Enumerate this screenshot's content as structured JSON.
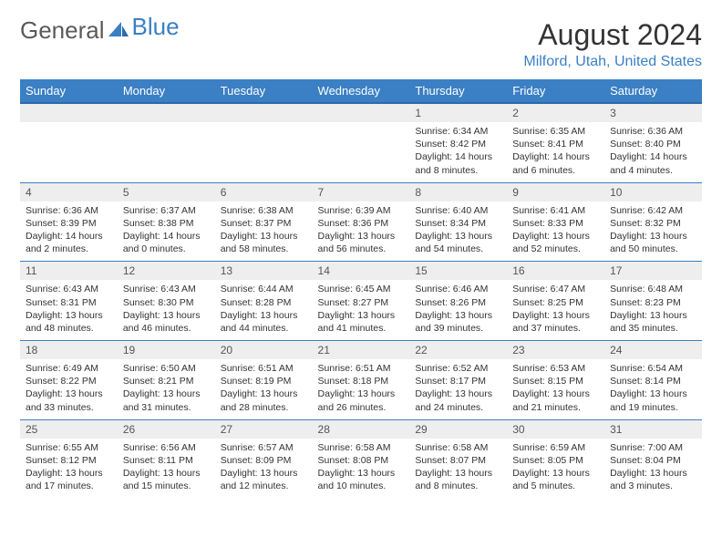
{
  "brand": {
    "part1": "General",
    "part2": "Blue"
  },
  "title": "August 2024",
  "location": "Milford, Utah, United States",
  "colors": {
    "accent": "#3b7fc4",
    "header_border": "#2f6aa8",
    "row_band": "#eeeeee",
    "text": "#333333",
    "bg": "#ffffff"
  },
  "day_headers": [
    "Sunday",
    "Monday",
    "Tuesday",
    "Wednesday",
    "Thursday",
    "Friday",
    "Saturday"
  ],
  "weeks": [
    [
      {
        "n": "",
        "sr": "",
        "ss": "",
        "dl": ""
      },
      {
        "n": "",
        "sr": "",
        "ss": "",
        "dl": ""
      },
      {
        "n": "",
        "sr": "",
        "ss": "",
        "dl": ""
      },
      {
        "n": "",
        "sr": "",
        "ss": "",
        "dl": ""
      },
      {
        "n": "1",
        "sr": "Sunrise: 6:34 AM",
        "ss": "Sunset: 8:42 PM",
        "dl": "Daylight: 14 hours and 8 minutes."
      },
      {
        "n": "2",
        "sr": "Sunrise: 6:35 AM",
        "ss": "Sunset: 8:41 PM",
        "dl": "Daylight: 14 hours and 6 minutes."
      },
      {
        "n": "3",
        "sr": "Sunrise: 6:36 AM",
        "ss": "Sunset: 8:40 PM",
        "dl": "Daylight: 14 hours and 4 minutes."
      }
    ],
    [
      {
        "n": "4",
        "sr": "Sunrise: 6:36 AM",
        "ss": "Sunset: 8:39 PM",
        "dl": "Daylight: 14 hours and 2 minutes."
      },
      {
        "n": "5",
        "sr": "Sunrise: 6:37 AM",
        "ss": "Sunset: 8:38 PM",
        "dl": "Daylight: 14 hours and 0 minutes."
      },
      {
        "n": "6",
        "sr": "Sunrise: 6:38 AM",
        "ss": "Sunset: 8:37 PM",
        "dl": "Daylight: 13 hours and 58 minutes."
      },
      {
        "n": "7",
        "sr": "Sunrise: 6:39 AM",
        "ss": "Sunset: 8:36 PM",
        "dl": "Daylight: 13 hours and 56 minutes."
      },
      {
        "n": "8",
        "sr": "Sunrise: 6:40 AM",
        "ss": "Sunset: 8:34 PM",
        "dl": "Daylight: 13 hours and 54 minutes."
      },
      {
        "n": "9",
        "sr": "Sunrise: 6:41 AM",
        "ss": "Sunset: 8:33 PM",
        "dl": "Daylight: 13 hours and 52 minutes."
      },
      {
        "n": "10",
        "sr": "Sunrise: 6:42 AM",
        "ss": "Sunset: 8:32 PM",
        "dl": "Daylight: 13 hours and 50 minutes."
      }
    ],
    [
      {
        "n": "11",
        "sr": "Sunrise: 6:43 AM",
        "ss": "Sunset: 8:31 PM",
        "dl": "Daylight: 13 hours and 48 minutes."
      },
      {
        "n": "12",
        "sr": "Sunrise: 6:43 AM",
        "ss": "Sunset: 8:30 PM",
        "dl": "Daylight: 13 hours and 46 minutes."
      },
      {
        "n": "13",
        "sr": "Sunrise: 6:44 AM",
        "ss": "Sunset: 8:28 PM",
        "dl": "Daylight: 13 hours and 44 minutes."
      },
      {
        "n": "14",
        "sr": "Sunrise: 6:45 AM",
        "ss": "Sunset: 8:27 PM",
        "dl": "Daylight: 13 hours and 41 minutes."
      },
      {
        "n": "15",
        "sr": "Sunrise: 6:46 AM",
        "ss": "Sunset: 8:26 PM",
        "dl": "Daylight: 13 hours and 39 minutes."
      },
      {
        "n": "16",
        "sr": "Sunrise: 6:47 AM",
        "ss": "Sunset: 8:25 PM",
        "dl": "Daylight: 13 hours and 37 minutes."
      },
      {
        "n": "17",
        "sr": "Sunrise: 6:48 AM",
        "ss": "Sunset: 8:23 PM",
        "dl": "Daylight: 13 hours and 35 minutes."
      }
    ],
    [
      {
        "n": "18",
        "sr": "Sunrise: 6:49 AM",
        "ss": "Sunset: 8:22 PM",
        "dl": "Daylight: 13 hours and 33 minutes."
      },
      {
        "n": "19",
        "sr": "Sunrise: 6:50 AM",
        "ss": "Sunset: 8:21 PM",
        "dl": "Daylight: 13 hours and 31 minutes."
      },
      {
        "n": "20",
        "sr": "Sunrise: 6:51 AM",
        "ss": "Sunset: 8:19 PM",
        "dl": "Daylight: 13 hours and 28 minutes."
      },
      {
        "n": "21",
        "sr": "Sunrise: 6:51 AM",
        "ss": "Sunset: 8:18 PM",
        "dl": "Daylight: 13 hours and 26 minutes."
      },
      {
        "n": "22",
        "sr": "Sunrise: 6:52 AM",
        "ss": "Sunset: 8:17 PM",
        "dl": "Daylight: 13 hours and 24 minutes."
      },
      {
        "n": "23",
        "sr": "Sunrise: 6:53 AM",
        "ss": "Sunset: 8:15 PM",
        "dl": "Daylight: 13 hours and 21 minutes."
      },
      {
        "n": "24",
        "sr": "Sunrise: 6:54 AM",
        "ss": "Sunset: 8:14 PM",
        "dl": "Daylight: 13 hours and 19 minutes."
      }
    ],
    [
      {
        "n": "25",
        "sr": "Sunrise: 6:55 AM",
        "ss": "Sunset: 8:12 PM",
        "dl": "Daylight: 13 hours and 17 minutes."
      },
      {
        "n": "26",
        "sr": "Sunrise: 6:56 AM",
        "ss": "Sunset: 8:11 PM",
        "dl": "Daylight: 13 hours and 15 minutes."
      },
      {
        "n": "27",
        "sr": "Sunrise: 6:57 AM",
        "ss": "Sunset: 8:09 PM",
        "dl": "Daylight: 13 hours and 12 minutes."
      },
      {
        "n": "28",
        "sr": "Sunrise: 6:58 AM",
        "ss": "Sunset: 8:08 PM",
        "dl": "Daylight: 13 hours and 10 minutes."
      },
      {
        "n": "29",
        "sr": "Sunrise: 6:58 AM",
        "ss": "Sunset: 8:07 PM",
        "dl": "Daylight: 13 hours and 8 minutes."
      },
      {
        "n": "30",
        "sr": "Sunrise: 6:59 AM",
        "ss": "Sunset: 8:05 PM",
        "dl": "Daylight: 13 hours and 5 minutes."
      },
      {
        "n": "31",
        "sr": "Sunrise: 7:00 AM",
        "ss": "Sunset: 8:04 PM",
        "dl": "Daylight: 13 hours and 3 minutes."
      }
    ]
  ]
}
